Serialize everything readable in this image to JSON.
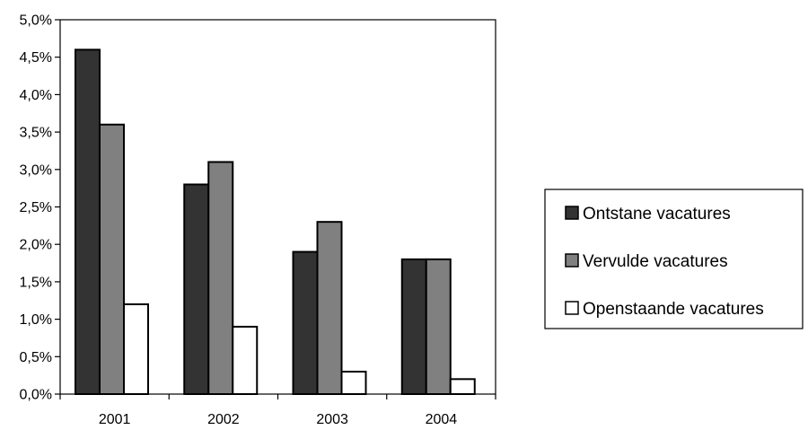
{
  "chart_data": {
    "type": "bar",
    "title": "",
    "xlabel": "",
    "ylabel": "",
    "categories": [
      "2001",
      "2002",
      "2003",
      "2004"
    ],
    "series": [
      {
        "name": "Ontstane vacatures",
        "values": [
          4.6,
          2.8,
          1.9,
          1.8
        ],
        "color": "#333333"
      },
      {
        "name": "Vervulde vacatures",
        "values": [
          3.6,
          3.1,
          2.3,
          1.8
        ],
        "color": "#808080"
      },
      {
        "name": "Openstaande vacatures",
        "values": [
          1.2,
          0.9,
          0.3,
          0.2
        ],
        "color": "#ffffff"
      }
    ],
    "ylim": [
      0,
      5.0
    ],
    "yticks": [
      "0,0%",
      "0,5%",
      "1,0%",
      "1,5%",
      "2,0%",
      "2,5%",
      "3,0%",
      "3,5%",
      "4,0%",
      "4,5%",
      "5,0%"
    ],
    "grid": false,
    "legend_position": "right"
  }
}
